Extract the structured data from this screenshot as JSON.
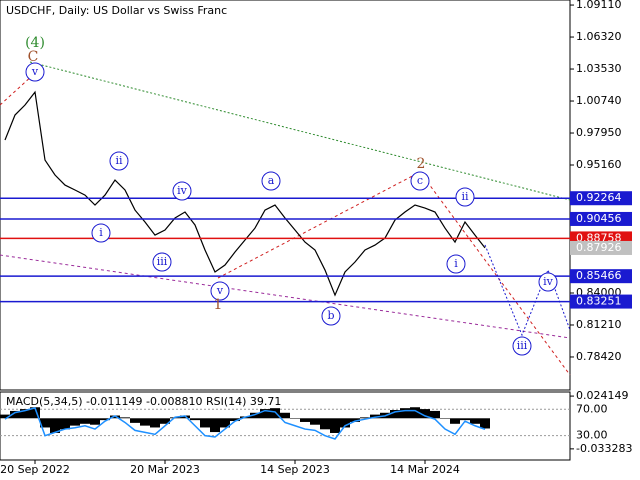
{
  "chart_data": [
    {
      "type": "line",
      "title": "USDCHF, Daily:  US Dollar vs Swiss Franc",
      "categories": [
        null,
        null,
        null,
        "20 Sep 2022",
        null,
        null,
        null,
        null,
        null,
        null,
        null,
        null,
        null,
        null,
        null,
        null,
        "20 Mar 2023",
        null,
        null,
        null,
        null,
        null,
        null,
        null,
        null,
        null,
        null,
        null,
        null,
        "14 Sep 2023",
        null,
        null,
        null,
        null,
        null,
        null,
        null,
        null,
        null,
        null,
        null,
        null,
        "14 Mar 2024",
        null,
        null,
        null,
        null,
        null,
        null
      ],
      "values": [
        0.9734,
        0.9952,
        1.0039,
        1.0152,
        0.9559,
        0.9429,
        0.9341,
        0.9298,
        0.9254,
        0.9167,
        0.9254,
        0.9385,
        0.9298,
        0.9123,
        0.9019,
        0.8905,
        0.8949,
        0.9054,
        0.9106,
        0.8993,
        0.8775,
        0.8583,
        0.8644,
        0.8757,
        0.8862,
        0.8966,
        0.9123,
        0.9167,
        0.9054,
        0.8949,
        0.8844,
        0.8775,
        0.86,
        0.8382,
        0.8583,
        0.867,
        0.8775,
        0.8818,
        0.8879,
        0.9036,
        0.9106,
        0.9167,
        0.9141,
        0.9106,
        0.8966,
        0.8844,
        0.9019,
        0.8905,
        0.8793
      ],
      "color": "#000000",
      "ylim": [
        0.7554,
        1.0955
      ],
      "yticks": [
        {
          "value": 1.0911,
          "label": "1.09110"
        },
        {
          "value": 1.0632,
          "label": "1.06320"
        },
        {
          "value": 1.0353,
          "label": "1.03530"
        },
        {
          "value": 1.0074,
          "label": "1.00740"
        },
        {
          "value": 0.9795,
          "label": "0.97950"
        },
        {
          "value": 0.9516,
          "label": "0.95160"
        },
        {
          "value": 0.84,
          "label": "0.84000"
        },
        {
          "value": 0.8121,
          "label": "0.81210"
        },
        {
          "value": 0.7842,
          "label": "0.78420"
        }
      ],
      "levels": [
        {
          "value": 0.92264,
          "color": "#1a1ad0"
        },
        {
          "value": 0.90456,
          "color": "#1a1ad0"
        },
        {
          "value": 0.88758,
          "color": "#e01010"
        },
        {
          "value": 0.85466,
          "color": "#1a1ad0"
        },
        {
          "value": 0.83251,
          "color": "#1a1ad0"
        }
      ],
      "last_price": 0.87926,
      "annotations": [
        "(4)",
        "C",
        "v",
        "ii",
        "i",
        "iv",
        "iii",
        "v",
        "1",
        "a",
        "b",
        "c",
        "2",
        "ii",
        "i",
        "iv",
        "iii"
      ]
    },
    {
      "type": "bar",
      "title": "MACD(5,34,5) -0.011149 -0.008810 RSI(14) 39.71",
      "series": [
        {
          "color": "#000000",
          "values": [
            0.004,
            0.008,
            0.01,
            0.012,
            -0.01,
            -0.016,
            -0.012,
            -0.008,
            -0.006,
            -0.007,
            -0.002,
            0.003,
            0.001,
            -0.005,
            -0.008,
            -0.01,
            -0.006,
            0.001,
            0.003,
            -0.002,
            -0.01,
            -0.015,
            -0.01,
            -0.003,
            0.002,
            0.006,
            0.01,
            0.011,
            0.006,
            0.0,
            -0.004,
            -0.007,
            -0.012,
            -0.016,
            -0.01,
            -0.004,
            0.001,
            0.004,
            0.006,
            0.009,
            0.011,
            0.012,
            0.01,
            0.008,
            0.0,
            -0.006,
            -0.002,
            -0.006,
            -0.0111
          ]
        },
        {
          "color": "#1e90ff",
          "axis": "y2",
          "values": [
            55,
            65,
            68,
            72,
            30,
            35,
            40,
            42,
            45,
            40,
            52,
            60,
            50,
            38,
            35,
            32,
            45,
            58,
            60,
            45,
            30,
            28,
            40,
            52,
            58,
            62,
            68,
            66,
            50,
            45,
            40,
            38,
            30,
            25,
            45,
            52,
            55,
            58,
            60,
            66,
            68,
            68,
            60,
            55,
            40,
            32,
            52,
            45,
            39.71
          ]
        }
      ],
      "ylim": [
        -0.0454,
        0.0286
      ],
      "yticks": [
        0.024149,
        -0.033283
      ],
      "y2lim": [
        -6.9,
        96.2
      ],
      "y2ticks": [
        {
          "value": 70,
          "label": "70.00"
        },
        {
          "value": 30,
          "label": "30.00"
        }
      ]
    }
  ]
}
